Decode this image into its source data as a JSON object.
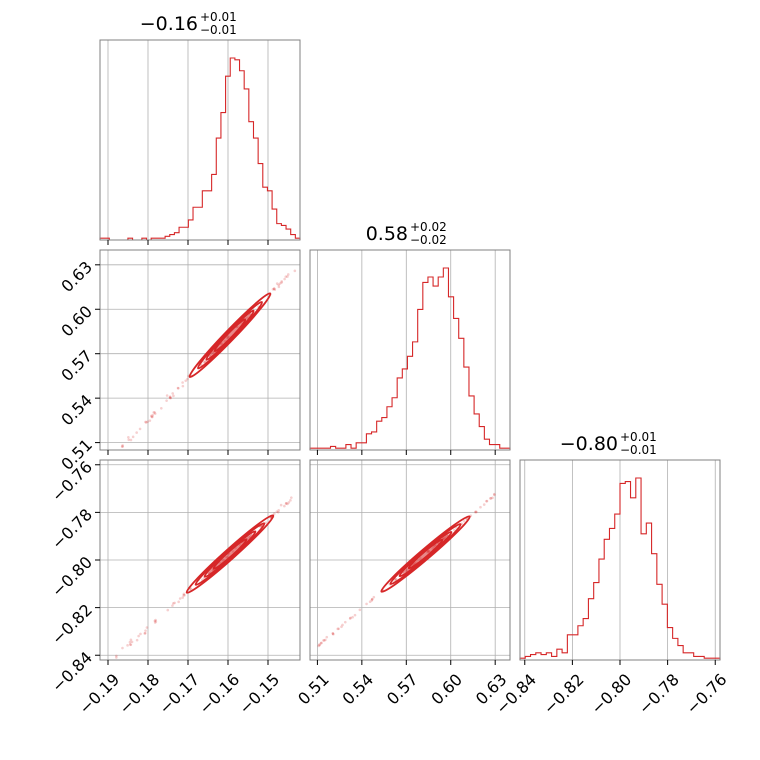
{
  "chart_data": {
    "type": "corner",
    "color": "#d62728",
    "grid": true,
    "parameters": [
      {
        "title": "−0.16",
        "title_plus": "+0.01",
        "title_minus": "−0.01",
        "range": [
          -0.192,
          -0.142
        ],
        "ticks": [
          -0.19,
          -0.18,
          -0.17,
          -0.16,
          -0.15
        ],
        "tick_labels": [
          "−0.19",
          "−0.18",
          "−0.17",
          "−0.16",
          "−0.15"
        ],
        "hist": [
          1,
          1,
          0,
          0,
          0,
          0,
          1,
          0,
          0,
          1,
          0,
          1,
          1,
          1,
          2,
          3,
          4,
          7,
          7,
          11,
          18,
          18,
          27,
          27,
          36,
          56,
          70,
          90,
          100,
          99,
          93,
          83,
          65,
          56,
          42,
          29,
          27,
          17,
          9,
          8,
          6,
          3,
          1
        ]
      },
      {
        "title": "0.58",
        "title_plus": "+0.02",
        "title_minus": "−0.02",
        "range": [
          0.505,
          0.64
        ],
        "ticks": [
          0.51,
          0.54,
          0.57,
          0.6,
          0.63
        ],
        "tick_labels": [
          "0.51",
          "0.54",
          "0.57",
          "0.60",
          "0.63"
        ],
        "hist": [
          1,
          1,
          1,
          1,
          2,
          1,
          1,
          3,
          1,
          4,
          4,
          9,
          10,
          16,
          18,
          24,
          29,
          40,
          45,
          52,
          60,
          78,
          93,
          96,
          91,
          96,
          101,
          85,
          73,
          62,
          46,
          30,
          20,
          13,
          6,
          3,
          3,
          1,
          1
        ]
      },
      {
        "title": "−0.80",
        "title_plus": "+0.01",
        "title_minus": "−0.01",
        "range": [
          -0.842,
          -0.758
        ],
        "ticks": [
          -0.84,
          -0.82,
          -0.8,
          -0.78,
          -0.76
        ],
        "tick_labels": [
          "−0.84",
          "−0.82",
          "−0.80",
          "−0.78",
          "−0.76"
        ],
        "hist": [
          1,
          2,
          3,
          4,
          3,
          4,
          2,
          6,
          4,
          14,
          14,
          19,
          23,
          34,
          43,
          56,
          67,
          73,
          81,
          98,
          99,
          90,
          101,
          70,
          76,
          59,
          42,
          31,
          18,
          12,
          8,
          4,
          4,
          2,
          2,
          1,
          1,
          1
        ]
      }
    ],
    "pairs": [
      {
        "x": 0,
        "y": 1,
        "x0": -0.1595,
        "y0": 0.5825,
        "slope": 2.8,
        "spread": 0.0025,
        "range": [
          -0.19,
          -0.143
        ]
      },
      {
        "x": 0,
        "y": 2,
        "x0": -0.1595,
        "y0": -0.7975,
        "slope": 1.5,
        "spread": 0.0014,
        "range": [
          -0.19,
          -0.143
        ]
      },
      {
        "x": 1,
        "y": 2,
        "x0": 0.583,
        "y0": -0.7975,
        "slope": 0.53,
        "spread": 0.0007,
        "range": [
          0.51,
          0.63
        ]
      }
    ]
  }
}
